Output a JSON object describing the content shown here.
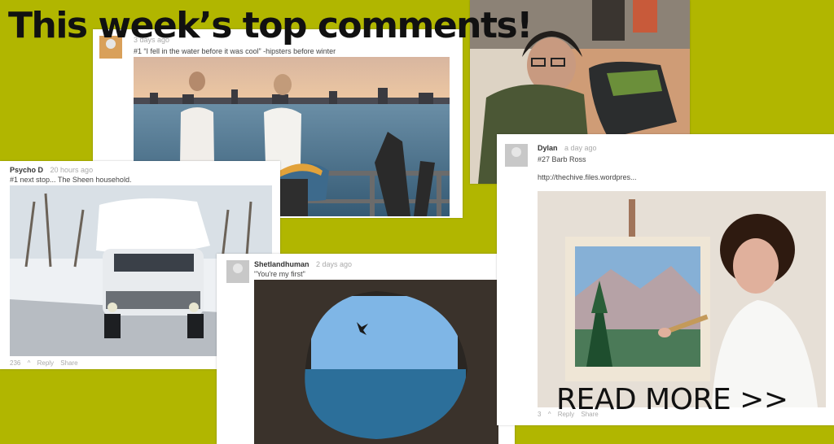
{
  "header": {
    "title": "This week’s top comments!"
  },
  "cta": {
    "label": "READ MORE >>"
  },
  "cards": [
    {
      "user": "",
      "ago": "3 days ago",
      "text": "#1 “I fell in the water before it was cool” -hipsters before winter",
      "photo_icon": "two-men-by-river-photo"
    },
    {
      "user": "",
      "ago": "",
      "text": "",
      "photo_icon": "classroom-student-photo"
    },
    {
      "user": "Psycho D",
      "ago": "20 hours ago",
      "text": "#1 next stop... The Sheen household.",
      "photo_icon": "snow-covered-car-photo",
      "votes": "236",
      "reply": "Reply",
      "share": "Share"
    },
    {
      "user": "Shetlandhuman",
      "ago": "2 days ago",
      "text": "\"You're my first\"",
      "photo_icon": "cave-cliff-jump-photo"
    },
    {
      "user": "Dylan",
      "ago": "a day ago",
      "text": "#27 Barb Ross",
      "link": "http://thechive.files.wordpres...",
      "photo_icon": "painter-with-canvas-photo",
      "votes": "3",
      "reply": "Reply",
      "share": "Share"
    }
  ],
  "colors": {
    "background": "#b1b600",
    "card": "#ffffff",
    "muted": "#aaaaaa"
  }
}
